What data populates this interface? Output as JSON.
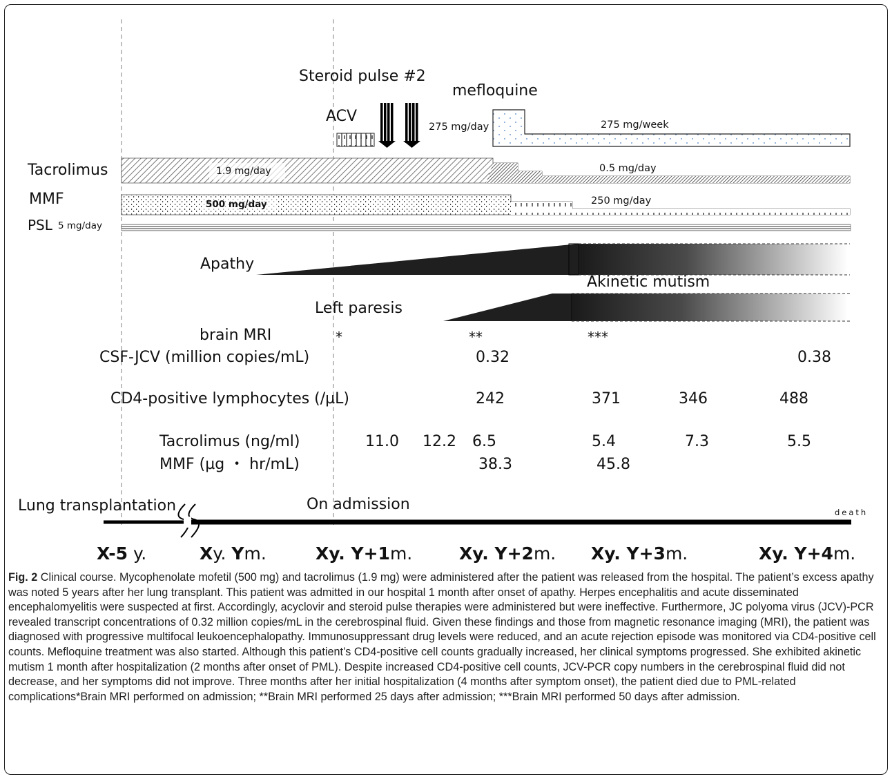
{
  "figure": {
    "labels": {
      "steroid_pulse": "Steroid pulse #2",
      "mefloquine": "mefloquine",
      "acv": "ACV",
      "mefloquine_dose_initial": "275 mg/day",
      "mefloquine_dose_maint": "275 mg/week",
      "tacrolimus": "Tacrolimus",
      "tacrolimus_dose_initial": "1.9 mg/day",
      "tacrolimus_dose_reduced": "0.5 mg/day",
      "mmf": "MMF",
      "mmf_dose_initial": "500 mg/day",
      "mmf_dose_reduced": "250 mg/day",
      "psl": "PSL",
      "psl_dose": "5 mg/day",
      "apathy": "Apathy",
      "akinetic_mutism": "Akinetic mutism",
      "left_paresis": "Left paresis",
      "brain_mri": "brain MRI",
      "mri_marks": [
        "*",
        "**",
        "***"
      ],
      "csf_jcv": "CSF-JCV (million copies/mL)",
      "csf_values": [
        "0.32",
        "0.38"
      ],
      "cd4": "CD4-positive lymphocytes (/µL)",
      "cd4_values": [
        "242",
        "371",
        "346",
        "488"
      ],
      "tac_level": "Tacrolimus (ng/ml)",
      "tac_values": [
        "11.0",
        "12.2",
        "6.5",
        "5.4",
        "7.3",
        "5.5"
      ],
      "mmf_level": "MMF (µg ・ hr/mL)",
      "mmf_values": [
        "38.3",
        "45.8"
      ],
      "lung_tx": "Lung transplantation",
      "admission": "On admission",
      "death": "death"
    },
    "timepoints": [
      {
        "bold": "X-5",
        "normal": " y."
      },
      {
        "bold": "X",
        "normal": "y. ",
        "bold2": "Y",
        "normal2": "m."
      },
      {
        "bold": "Xy. Y+1",
        "normal": "m."
      },
      {
        "bold": "Xy. Y+2",
        "normal": "m."
      },
      {
        "bold": "Xy. Y+3",
        "normal": "m."
      },
      {
        "bold": "Xy. Y+4",
        "normal": "m."
      }
    ]
  },
  "caption": {
    "label": "Fig. 2",
    "text": "Clinical course. Mycophenolate mofetil (500 mg) and tacrolimus (1.9 mg) were administered after the patient was released from the hospital. The patient’s excess apathy was noted 5 years after her lung transplant. This patient was admitted in our hospital 1 month after onset of apathy. Herpes encephalitis and acute disseminated encephalomyelitis were suspected at first. Accordingly, acyclovir and steroid pulse therapies were administered but were ineffective. Furthermore, JC polyoma virus (JCV)-PCR revealed transcript concentrations of 0.32 million copies/mL in the cerebrospinal fluid. Given these findings and those from magnetic resonance imaging (MRI), the patient was diagnosed with progressive multifocal leukoencephalopathy. Immunosuppressant drug levels were reduced, and an acute rejection episode was monitored via CD4-positive cell counts. Mefloquine treatment was also started. Although this patient’s CD4-positive cell counts gradually increased, her clinical symptoms progressed. She exhibited akinetic mutism 1 month after hospitalization (2 months after onset of PML). Despite increased CD4-positive cell counts, JCV-PCR copy numbers in the cerebrospinal fluid did not decrease, and her symptoms did not improve. Three months after her initial hospitalization (4 months after symptom onset), the patient died due to PML-related complications*Brain MRI performed on admission; **Brain MRI performed 25 days after admission; ***Brain MRI performed 50 days after admission."
  }
}
